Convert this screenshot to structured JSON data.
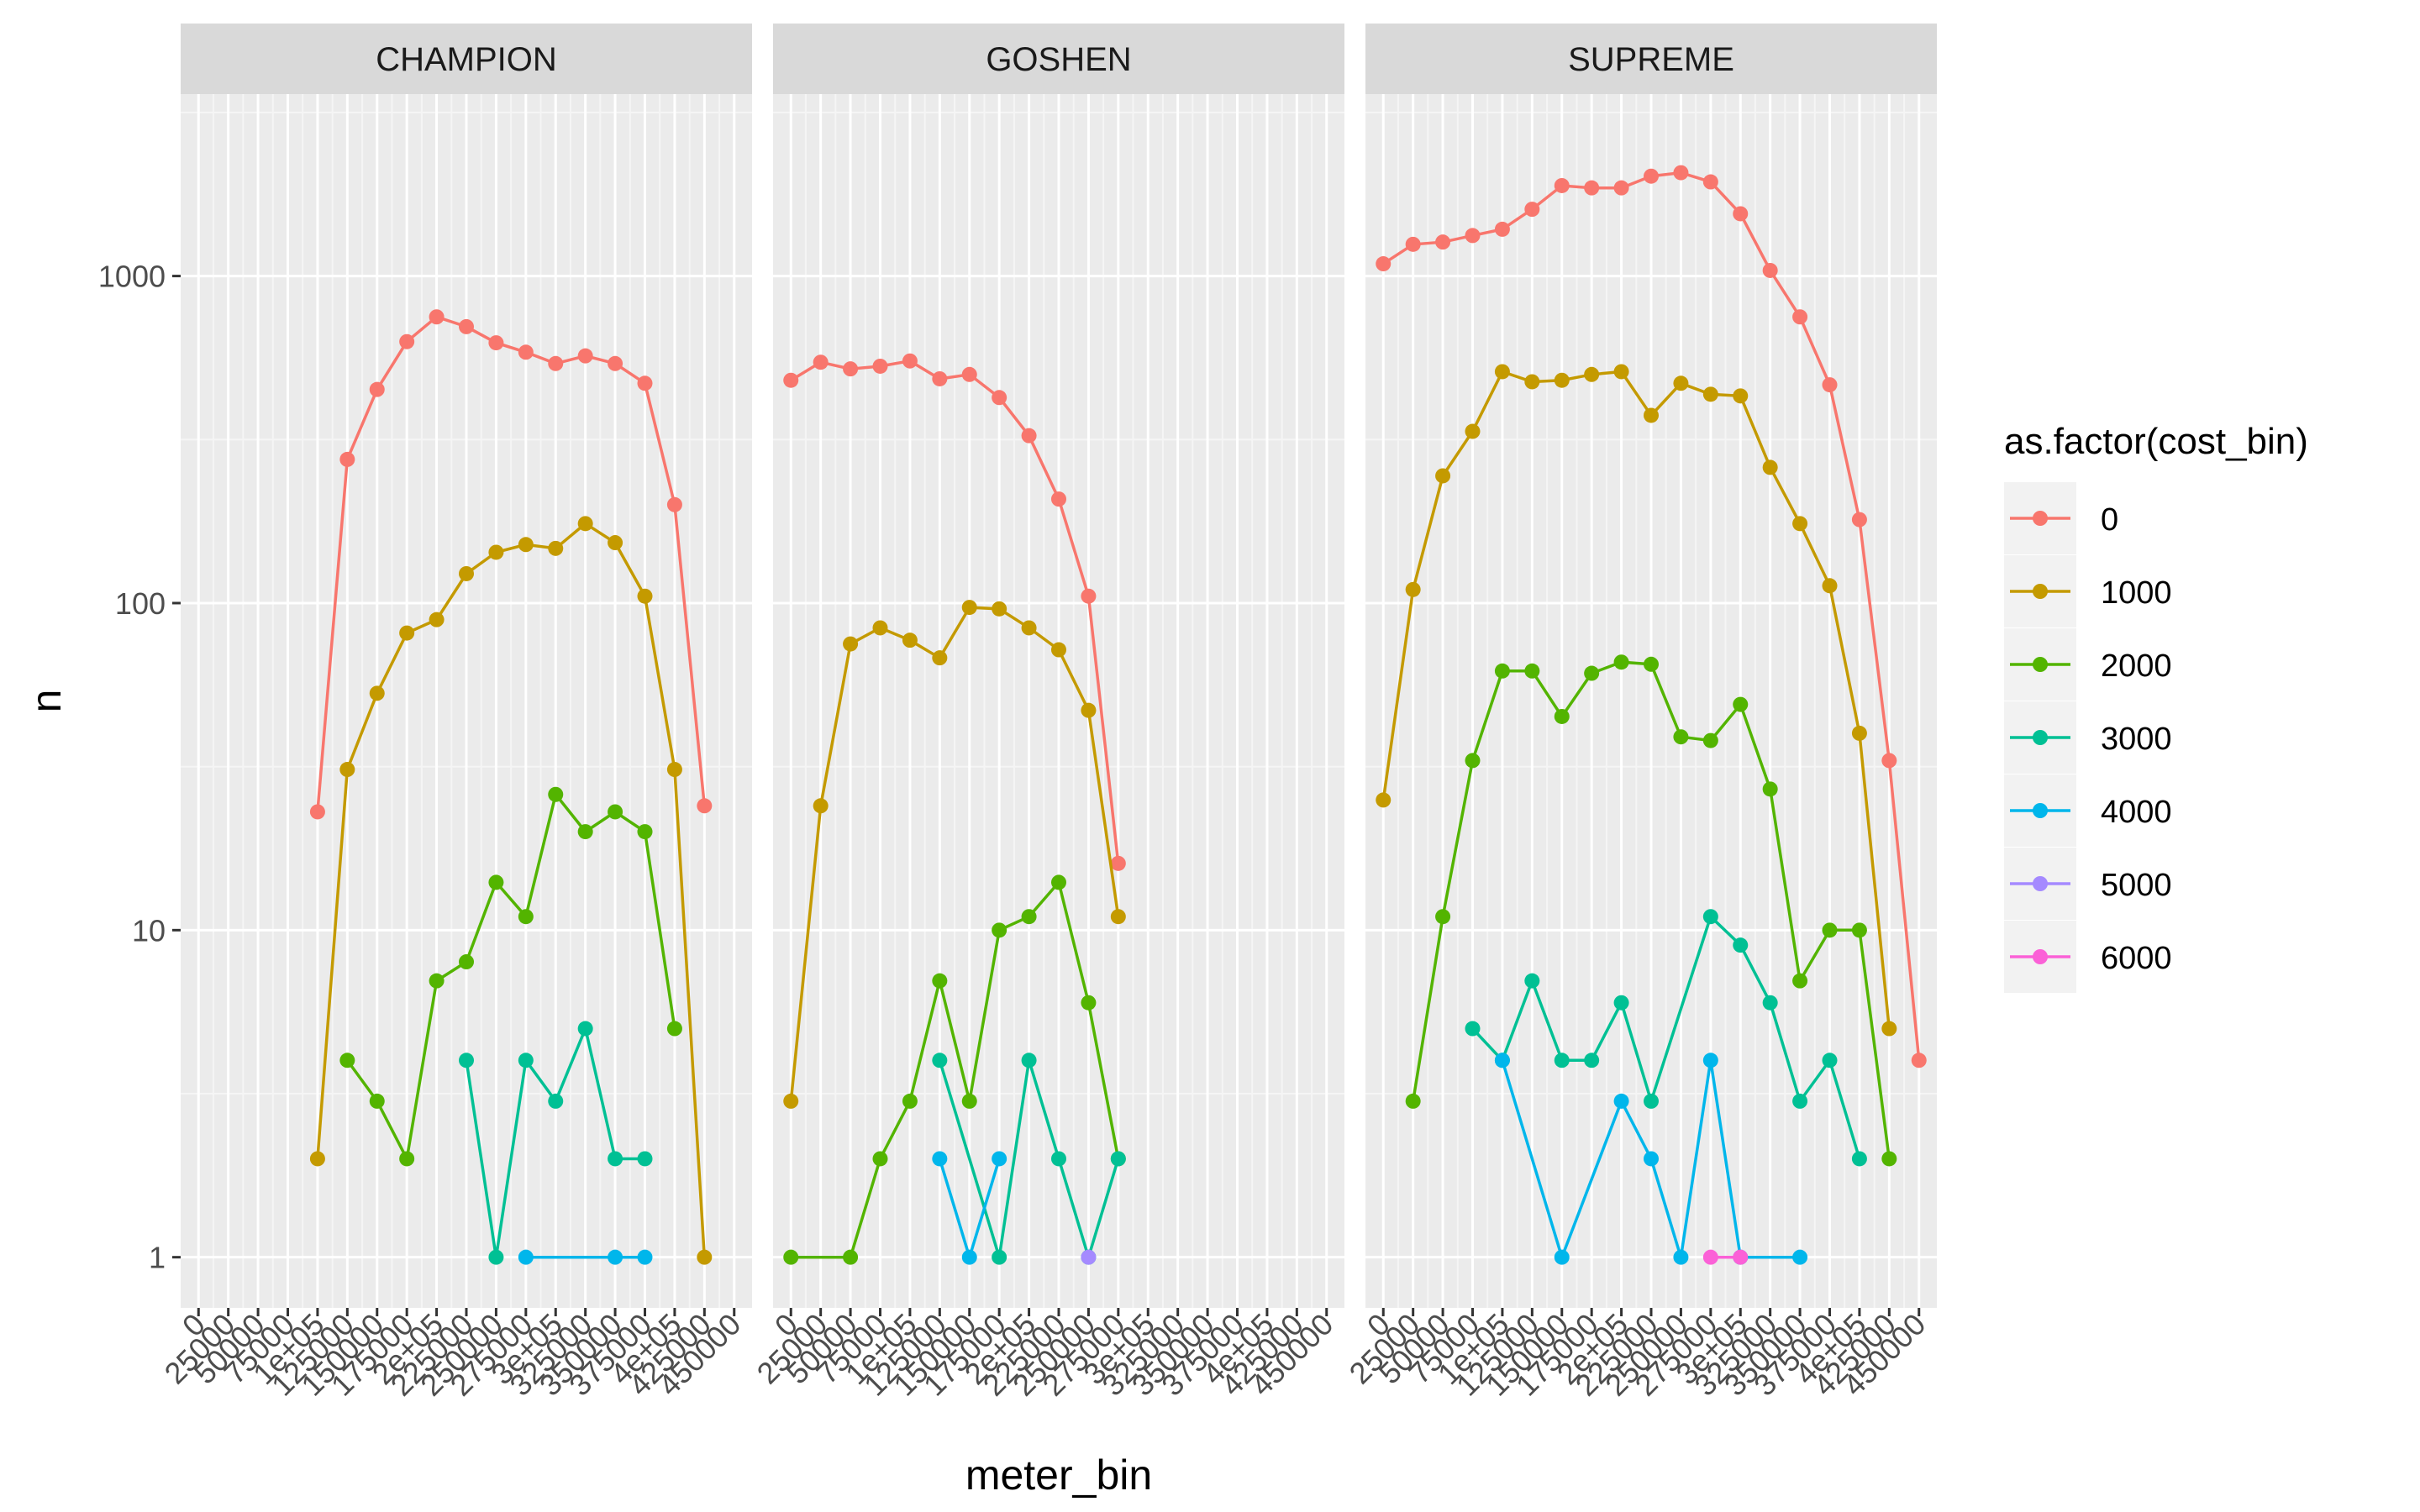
{
  "chart_data": {
    "type": "line",
    "xlabel": "meter_bin",
    "ylabel": "n",
    "y_scale": "log10",
    "ylim": [
      0.7,
      3600
    ],
    "y_ticks": [
      1,
      10,
      100,
      1000
    ],
    "y_tick_labels": [
      "1",
      "10",
      "100",
      "1000"
    ],
    "x": [
      0,
      25000,
      50000,
      75000,
      100000,
      125000,
      150000,
      175000,
      200000,
      225000,
      250000,
      275000,
      300000,
      325000,
      350000,
      375000,
      400000,
      425000,
      450000
    ],
    "x_tick_labels": [
      "0",
      "25000",
      "50000",
      "75000",
      "1e+05",
      "125000",
      "150000",
      "175000",
      "2e+05",
      "225000",
      "250000",
      "275000",
      "3e+05",
      "325000",
      "350000",
      "375000",
      "4e+05",
      "425000",
      "450000"
    ],
    "grid": true,
    "legend": {
      "title": "as.factor(cost_bin)",
      "position": "right",
      "entries": [
        {
          "label": "0",
          "color": "#F8766D"
        },
        {
          "label": "1000",
          "color": "#C49A00"
        },
        {
          "label": "2000",
          "color": "#53B400"
        },
        {
          "label": "3000",
          "color": "#00C094"
        },
        {
          "label": "4000",
          "color": "#00B6EB"
        },
        {
          "label": "5000",
          "color": "#A58AFF"
        },
        {
          "label": "6000",
          "color": "#FB61D7"
        }
      ]
    },
    "facets": [
      {
        "name": "CHAMPION",
        "series": [
          {
            "name": "0",
            "points": [
              [
                100000,
                23
              ],
              [
                125000,
                275
              ],
              [
                150000,
                450
              ],
              [
                175000,
                630
              ],
              [
                200000,
                750
              ],
              [
                225000,
                700
              ],
              [
                250000,
                625
              ],
              [
                275000,
                585
              ],
              [
                300000,
                540
              ],
              [
                325000,
                570
              ],
              [
                350000,
                540
              ],
              [
                375000,
                470
              ],
              [
                400000,
                200
              ],
              [
                425000,
                24
              ]
            ]
          },
          {
            "name": "1000",
            "points": [
              [
                100000,
                2
              ],
              [
                125000,
                31
              ],
              [
                150000,
                53
              ],
              [
                175000,
                81
              ],
              [
                200000,
                89
              ],
              [
                225000,
                123
              ],
              [
                250000,
                143
              ],
              [
                275000,
                151
              ],
              [
                300000,
                147
              ],
              [
                325000,
                175
              ],
              [
                350000,
                153
              ],
              [
                375000,
                105
              ],
              [
                400000,
                31
              ],
              [
                425000,
                1
              ]
            ]
          },
          {
            "name": "2000",
            "points": [
              [
                125000,
                4
              ],
              [
                150000,
                3
              ],
              [
                175000,
                2
              ],
              [
                200000,
                7
              ],
              [
                225000,
                8
              ],
              [
                250000,
                14
              ],
              [
                275000,
                11
              ],
              [
                300000,
                26
              ],
              [
                325000,
                20
              ],
              [
                350000,
                23
              ],
              [
                375000,
                20
              ],
              [
                400000,
                5
              ]
            ]
          },
          {
            "name": "3000",
            "points": [
              [
                225000,
                4
              ],
              [
                250000,
                1
              ],
              [
                275000,
                4
              ],
              [
                300000,
                3
              ],
              [
                325000,
                5
              ],
              [
                350000,
                2
              ],
              [
                375000,
                2
              ]
            ]
          },
          {
            "name": "4000",
            "points": [
              [
                275000,
                1
              ],
              [
                350000,
                1
              ],
              [
                375000,
                1
              ]
            ]
          }
        ]
      },
      {
        "name": "GOSHEN",
        "series": [
          {
            "name": "0",
            "points": [
              [
                0,
                480
              ],
              [
                25000,
                545
              ],
              [
                50000,
                520
              ],
              [
                75000,
                530
              ],
              [
                100000,
                550
              ],
              [
                125000,
                485
              ],
              [
                150000,
                500
              ],
              [
                175000,
                425
              ],
              [
                200000,
                325
              ],
              [
                225000,
                208
              ],
              [
                250000,
                105
              ],
              [
                275000,
                16
              ]
            ]
          },
          {
            "name": "1000",
            "points": [
              [
                0,
                3
              ],
              [
                25000,
                24
              ],
              [
                50000,
                75
              ],
              [
                75000,
                84
              ],
              [
                100000,
                77
              ],
              [
                125000,
                68
              ],
              [
                150000,
                97
              ],
              [
                175000,
                96
              ],
              [
                200000,
                84
              ],
              [
                225000,
                72
              ],
              [
                250000,
                47
              ],
              [
                275000,
                11
              ]
            ]
          },
          {
            "name": "2000",
            "points": [
              [
                0,
                1
              ],
              [
                50000,
                1
              ],
              [
                75000,
                2
              ],
              [
                100000,
                3
              ],
              [
                125000,
                7
              ],
              [
                150000,
                3
              ],
              [
                175000,
                10
              ],
              [
                200000,
                11
              ],
              [
                225000,
                14
              ],
              [
                250000,
                6
              ],
              [
                275000,
                2
              ]
            ]
          },
          {
            "name": "3000",
            "points": [
              [
                125000,
                4
              ],
              [
                175000,
                1
              ],
              [
                200000,
                4
              ],
              [
                225000,
                2
              ],
              [
                250000,
                1
              ],
              [
                275000,
                2
              ]
            ]
          },
          {
            "name": "4000",
            "points": [
              [
                125000,
                2
              ],
              [
                150000,
                1
              ],
              [
                175000,
                2
              ]
            ]
          },
          {
            "name": "5000",
            "points": [
              [
                250000,
                1
              ]
            ]
          }
        ]
      },
      {
        "name": "SUPREME",
        "series": [
          {
            "name": "0",
            "points": [
              [
                0,
                1090
              ],
              [
                25000,
                1250
              ],
              [
                50000,
                1270
              ],
              [
                75000,
                1330
              ],
              [
                100000,
                1390
              ],
              [
                125000,
                1600
              ],
              [
                150000,
                1890
              ],
              [
                175000,
                1860
              ],
              [
                200000,
                1860
              ],
              [
                225000,
                2020
              ],
              [
                250000,
                2070
              ],
              [
                275000,
                1940
              ],
              [
                300000,
                1550
              ],
              [
                325000,
                1040
              ],
              [
                350000,
                750
              ],
              [
                375000,
                465
              ],
              [
                400000,
                180
              ],
              [
                425000,
                33
              ],
              [
                450000,
                4
              ]
            ]
          },
          {
            "name": "1000",
            "points": [
              [
                0,
                25
              ],
              [
                25000,
                110
              ],
              [
                50000,
                245
              ],
              [
                75000,
                335
              ],
              [
                100000,
                510
              ],
              [
                125000,
                475
              ],
              [
                150000,
                480
              ],
              [
                175000,
                500
              ],
              [
                200000,
                510
              ],
              [
                225000,
                375
              ],
              [
                250000,
                470
              ],
              [
                275000,
                435
              ],
              [
                300000,
                430
              ],
              [
                325000,
                260
              ],
              [
                350000,
                175
              ],
              [
                375000,
                113
              ],
              [
                400000,
                40
              ],
              [
                425000,
                5
              ]
            ]
          },
          {
            "name": "2000",
            "points": [
              [
                25000,
                3
              ],
              [
                50000,
                11
              ],
              [
                75000,
                33
              ],
              [
                100000,
                62
              ],
              [
                125000,
                62
              ],
              [
                150000,
                45
              ],
              [
                175000,
                61
              ],
              [
                200000,
                66
              ],
              [
                225000,
                65
              ],
              [
                250000,
                39
              ],
              [
                275000,
                38
              ],
              [
                300000,
                49
              ],
              [
                325000,
                27
              ],
              [
                350000,
                7
              ],
              [
                375000,
                10
              ],
              [
                400000,
                10
              ],
              [
                425000,
                2
              ]
            ]
          },
          {
            "name": "3000",
            "points": [
              [
                75000,
                5
              ],
              [
                100000,
                4
              ],
              [
                125000,
                7
              ],
              [
                150000,
                4
              ],
              [
                175000,
                4
              ],
              [
                200000,
                6
              ],
              [
                225000,
                3
              ],
              [
                275000,
                11
              ],
              [
                300000,
                9
              ],
              [
                325000,
                6
              ],
              [
                350000,
                3
              ],
              [
                375000,
                4
              ],
              [
                400000,
                2
              ]
            ]
          },
          {
            "name": "4000",
            "points": [
              [
                100000,
                4
              ],
              [
                150000,
                1
              ],
              [
                200000,
                3
              ],
              [
                225000,
                2
              ],
              [
                250000,
                1
              ],
              [
                275000,
                4
              ],
              [
                300000,
                1
              ],
              [
                350000,
                1
              ]
            ]
          },
          {
            "name": "6000",
            "points": [
              [
                275000,
                1
              ],
              [
                300000,
                1
              ]
            ]
          }
        ]
      }
    ]
  }
}
